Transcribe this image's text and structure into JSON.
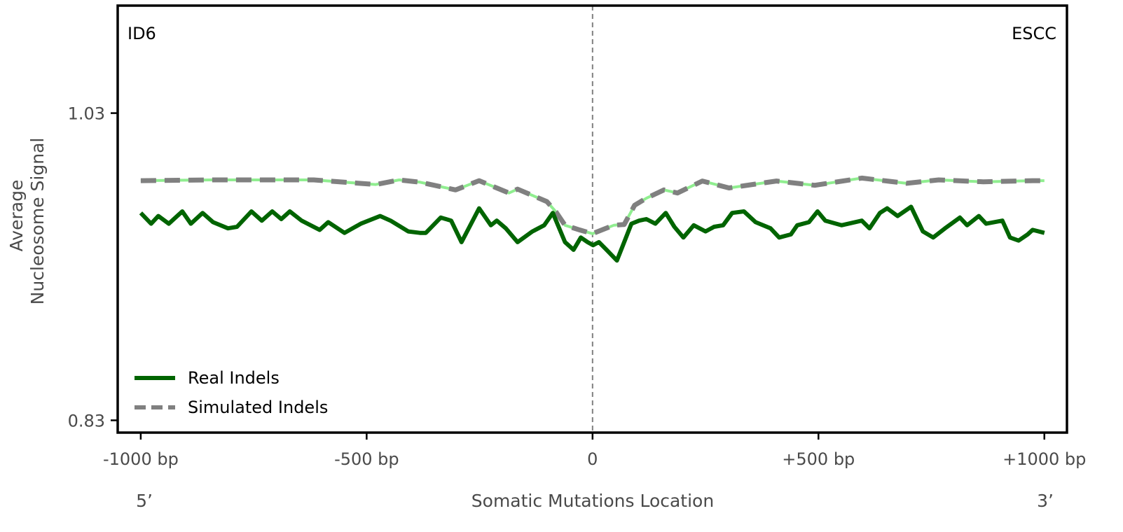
{
  "chart_data": {
    "type": "line",
    "title": "",
    "corner_labels": {
      "left": "ID6",
      "right": "ESCC"
    },
    "xlabel": "Somatic Mutations Location",
    "ylabel": [
      "Average",
      "Nucleosome Signal"
    ],
    "xlim": [
      -1051,
      1050
    ],
    "ylim": [
      0.822,
      1.1
    ],
    "x_ticks": [
      {
        "value": -1000,
        "label": "-1000 bp"
      },
      {
        "value": -500,
        "label": "-500 bp"
      },
      {
        "value": 0,
        "label": "0"
      },
      {
        "value": 500,
        "label": "+500 bp"
      },
      {
        "value": 1000,
        "label": "+1000 bp"
      }
    ],
    "y_ticks": [
      {
        "value": 1.03,
        "label": "1.03"
      },
      {
        "value": 0.83,
        "label": "0.83"
      }
    ],
    "end_labels": {
      "left": "5’",
      "right": "3’"
    },
    "vline_x": 0,
    "legend": {
      "placement": "lower-left"
    },
    "grid": false,
    "colors": {
      "real": "#006400",
      "simulated": "#808080",
      "simulated_under": "#90ee90",
      "vline": "#808080"
    },
    "series": [
      {
        "name": "Real Indels",
        "style": "solid",
        "x": [
          -1000,
          -977,
          -961,
          -938,
          -908,
          -889,
          -863,
          -840,
          -807,
          -787,
          -755,
          -732,
          -709,
          -689,
          -670,
          -644,
          -604,
          -585,
          -549,
          -513,
          -470,
          -447,
          -408,
          -382,
          -369,
          -336,
          -313,
          -290,
          -251,
          -225,
          -212,
          -192,
          -166,
          -133,
          -107,
          -88,
          -61,
          -42,
          -26,
          -11,
          1,
          14,
          31,
          54,
          70,
          86,
          103,
          119,
          139,
          162,
          181,
          201,
          224,
          250,
          269,
          289,
          309,
          335,
          361,
          394,
          413,
          439,
          453,
          479,
          498,
          515,
          551,
          596,
          613,
          636,
          652,
          675,
          705,
          731,
          754,
          780,
          813,
          829,
          855,
          871,
          907,
          924,
          943,
          963,
          974,
          1000
        ],
        "y": [
          0.965,
          0.958,
          0.963,
          0.958,
          0.966,
          0.958,
          0.965,
          0.959,
          0.955,
          0.956,
          0.966,
          0.96,
          0.966,
          0.961,
          0.966,
          0.96,
          0.954,
          0.959,
          0.952,
          0.958,
          0.963,
          0.96,
          0.953,
          0.952,
          0.952,
          0.962,
          0.96,
          0.946,
          0.968,
          0.957,
          0.96,
          0.955,
          0.946,
          0.953,
          0.957,
          0.965,
          0.946,
          0.941,
          0.949,
          0.946,
          0.944,
          0.946,
          0.941,
          0.934,
          0.946,
          0.958,
          0.96,
          0.961,
          0.958,
          0.965,
          0.956,
          0.949,
          0.957,
          0.953,
          0.956,
          0.957,
          0.965,
          0.966,
          0.959,
          0.955,
          0.949,
          0.951,
          0.957,
          0.959,
          0.966,
          0.96,
          0.957,
          0.96,
          0.955,
          0.965,
          0.968,
          0.963,
          0.969,
          0.953,
          0.949,
          0.955,
          0.962,
          0.957,
          0.963,
          0.958,
          0.96,
          0.949,
          0.947,
          0.951,
          0.954,
          0.952
        ]
      },
      {
        "name": "Simulated Indels",
        "style": "dashed",
        "x": [
          -1000,
          -840,
          -617,
          -480,
          -428,
          -382,
          -303,
          -251,
          -185,
          -166,
          -101,
          -81,
          -61,
          -29,
          0,
          47,
          70,
          93,
          119,
          158,
          188,
          243,
          302,
          407,
          492,
          596,
          695,
          766,
          865,
          974,
          1000
        ],
        "y": [
          0.986,
          0.9865,
          0.9865,
          0.9835,
          0.9865,
          0.985,
          0.98,
          0.986,
          0.978,
          0.9805,
          0.9724,
          0.9657,
          0.957,
          0.954,
          0.9515,
          0.957,
          0.9575,
          0.97,
          0.9746,
          0.98,
          0.978,
          0.9858,
          0.9813,
          0.9858,
          0.983,
          0.9877,
          0.9843,
          0.9865,
          0.9853,
          0.986,
          0.986
        ]
      }
    ]
  }
}
